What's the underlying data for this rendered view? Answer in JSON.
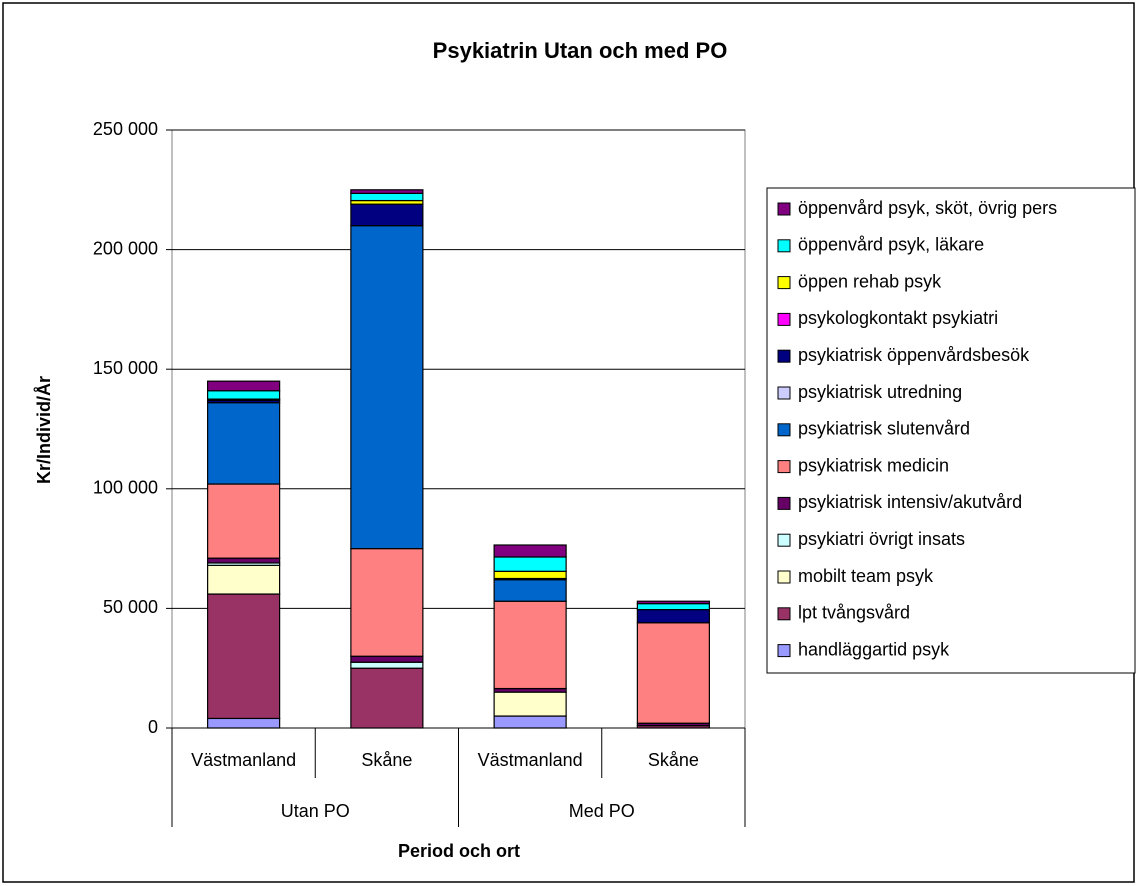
{
  "chart_data": {
    "type": "stacked_bar",
    "title": "Psykiatrin Utan och med PO",
    "y_label": "Kr/Individ/År",
    "x_label": "Period och ort",
    "categories": [
      "Västmanland",
      "Skåne",
      "Västmanland",
      "Skåne"
    ],
    "groups": [
      "Utan PO",
      "Med PO"
    ],
    "ylim": [
      0,
      250000
    ],
    "yticks": [
      {
        "value": 0,
        "label": "0"
      },
      {
        "value": 50000,
        "label": "50 000"
      },
      {
        "value": 100000,
        "label": "100 000"
      },
      {
        "value": 150000,
        "label": "150 000"
      },
      {
        "value": 200000,
        "label": "200 000"
      },
      {
        "value": 250000,
        "label": "250 000"
      }
    ],
    "grid": true,
    "legend": "right",
    "series": [
      {
        "name": "handläggartid psyk",
        "color": "#9999ff",
        "values": [
          4000,
          0,
          5000,
          0
        ]
      },
      {
        "name": "lpt tvångsvård",
        "color": "#993366",
        "values": [
          52000,
          25000,
          0,
          1000
        ]
      },
      {
        "name": "mobilt team psyk",
        "color": "#ffffcc",
        "values": [
          12000,
          0,
          10000,
          0
        ]
      },
      {
        "name": "psykiatri övrigt insats",
        "color": "#ccffff",
        "values": [
          1000,
          2500,
          0,
          0
        ]
      },
      {
        "name": "psykiatrisk intensiv/akutvård",
        "color": "#660066",
        "values": [
          2000,
          2500,
          1500,
          1000
        ]
      },
      {
        "name": "psykiatrisk medicin",
        "color": "#ff8080",
        "values": [
          31000,
          45000,
          36500,
          42000
        ]
      },
      {
        "name": "psykiatrisk slutenvård",
        "color": "#0066cc",
        "values": [
          34000,
          135000,
          9000,
          0
        ]
      },
      {
        "name": "psykiatrisk utredning",
        "color": "#ccccff",
        "values": [
          0,
          0,
          500,
          0
        ]
      },
      {
        "name": "psykiatrisk öppenvårdsbesök",
        "color": "#000080",
        "values": [
          1000,
          9000,
          0,
          5500
        ]
      },
      {
        "name": "psykologkontakt psykiatri",
        "color": "#ff00ff",
        "values": [
          0,
          0,
          0,
          0
        ]
      },
      {
        "name": "öppen rehab psyk",
        "color": "#ffff00",
        "values": [
          500,
          1500,
          3000,
          0
        ]
      },
      {
        "name": "öppenvård psyk, läkare",
        "color": "#00ffff",
        "values": [
          3500,
          3000,
          6000,
          2500
        ]
      },
      {
        "name": "öppenvård psyk, sköt, övrig pers",
        "color": "#800080",
        "values": [
          4000,
          1500,
          5000,
          1000
        ]
      }
    ]
  }
}
